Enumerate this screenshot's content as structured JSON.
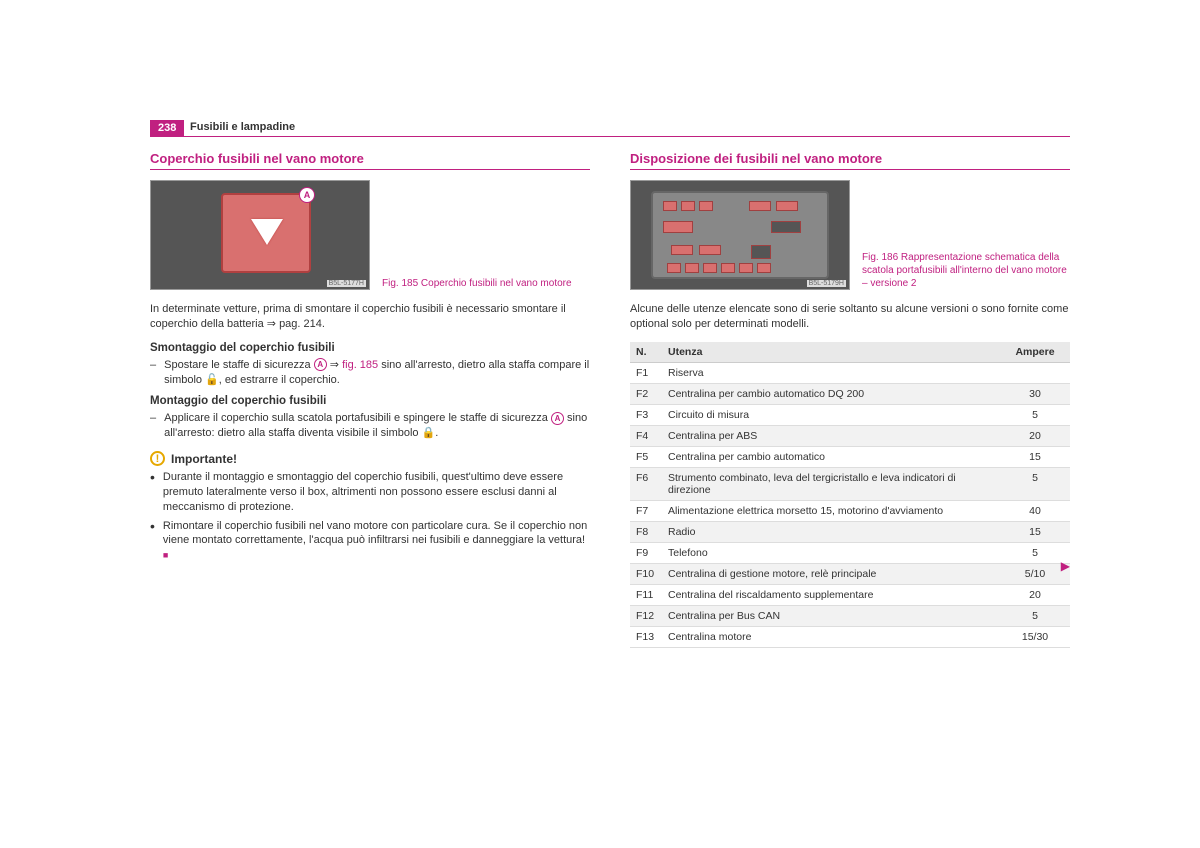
{
  "page": {
    "number": "238",
    "header": "Fusibili e lampadine"
  },
  "left": {
    "title": "Coperchio fusibili nel vano motore",
    "fig185": {
      "label": "B5L-5177H",
      "marker": "A",
      "caption": "Fig. 185   Coperchio fusibili nel vano motore"
    },
    "intro": "In determinate vetture, prima di smontare il coperchio fusibili è necessario smontare il coperchio della batteria ⇒ pag. 214.",
    "sub1": "Smontaggio del coperchio fusibili",
    "step1a": "Spostare le staffe di sicurezza ",
    "step1b": " ⇒ ",
    "step1_figref": "fig. 185",
    "step1c": " sino all'arresto, dietro alla staffa compare il simbolo 🔓, ed estrarre il coperchio.",
    "sub2": "Montaggio del coperchio fusibili",
    "step2a": "Applicare il coperchio sulla scatola portafusibili e spingere le staffe di sicurezza ",
    "step2b": " sino all'arresto: dietro alla staffa diventa visibile il simbolo 🔒.",
    "warn_title": "Importante!",
    "warn1": "Durante il montaggio e smontaggio del coperchio fusibili, quest'ultimo deve essere premuto lateralmente verso il box, altrimenti non possono essere esclusi danni al meccanismo di protezione.",
    "warn2a": "Rimontare il coperchio fusibili nel vano motore con particolare cura. Se il coperchio non viene montato correttamente, l'acqua può infiltrarsi nei fusibili e danneggiare la vettura! ",
    "end_square": "■"
  },
  "right": {
    "title": "Disposizione dei fusibili nel vano motore",
    "fig186": {
      "label": "B5L-5179H",
      "caption": "Fig. 186   Rappresentazione schematica della scatola portafusibili all'interno del vano motore – versione 2"
    },
    "intro": "Alcune delle utenze elencate sono di serie soltanto su alcune versioni o sono fornite come optional solo per determinati modelli.",
    "table": {
      "headers": {
        "n": "N.",
        "utenza": "Utenza",
        "ampere": "Ampere"
      },
      "rows": [
        {
          "n": "F1",
          "utenza": "Riserva",
          "ampere": ""
        },
        {
          "n": "F2",
          "utenza": "Centralina per cambio automatico DQ 200",
          "ampere": "30"
        },
        {
          "n": "F3",
          "utenza": "Circuito di misura",
          "ampere": "5"
        },
        {
          "n": "F4",
          "utenza": "Centralina per ABS",
          "ampere": "20"
        },
        {
          "n": "F5",
          "utenza": "Centralina per cambio automatico",
          "ampere": "15"
        },
        {
          "n": "F6",
          "utenza": "Strumento combinato, leva del tergicristallo e leva indicatori di direzione",
          "ampere": "5"
        },
        {
          "n": "F7",
          "utenza": "Alimentazione elettrica morsetto 15, motorino d'avviamento",
          "ampere": "40"
        },
        {
          "n": "F8",
          "utenza": "Radio",
          "ampere": "15"
        },
        {
          "n": "F9",
          "utenza": "Telefono",
          "ampere": "5"
        },
        {
          "n": "F10",
          "utenza": "Centralina di gestione motore, relè principale",
          "ampere": "5/10"
        },
        {
          "n": "F11",
          "utenza": "Centralina del riscaldamento supplementare",
          "ampere": "20"
        },
        {
          "n": "F12",
          "utenza": "Centralina per Bus CAN",
          "ampere": "5"
        },
        {
          "n": "F13",
          "utenza": "Centralina motore",
          "ampere": "15/30"
        }
      ]
    },
    "cont": "▶"
  },
  "colors": {
    "accent": "#c02080",
    "warn": "#e6a800"
  }
}
